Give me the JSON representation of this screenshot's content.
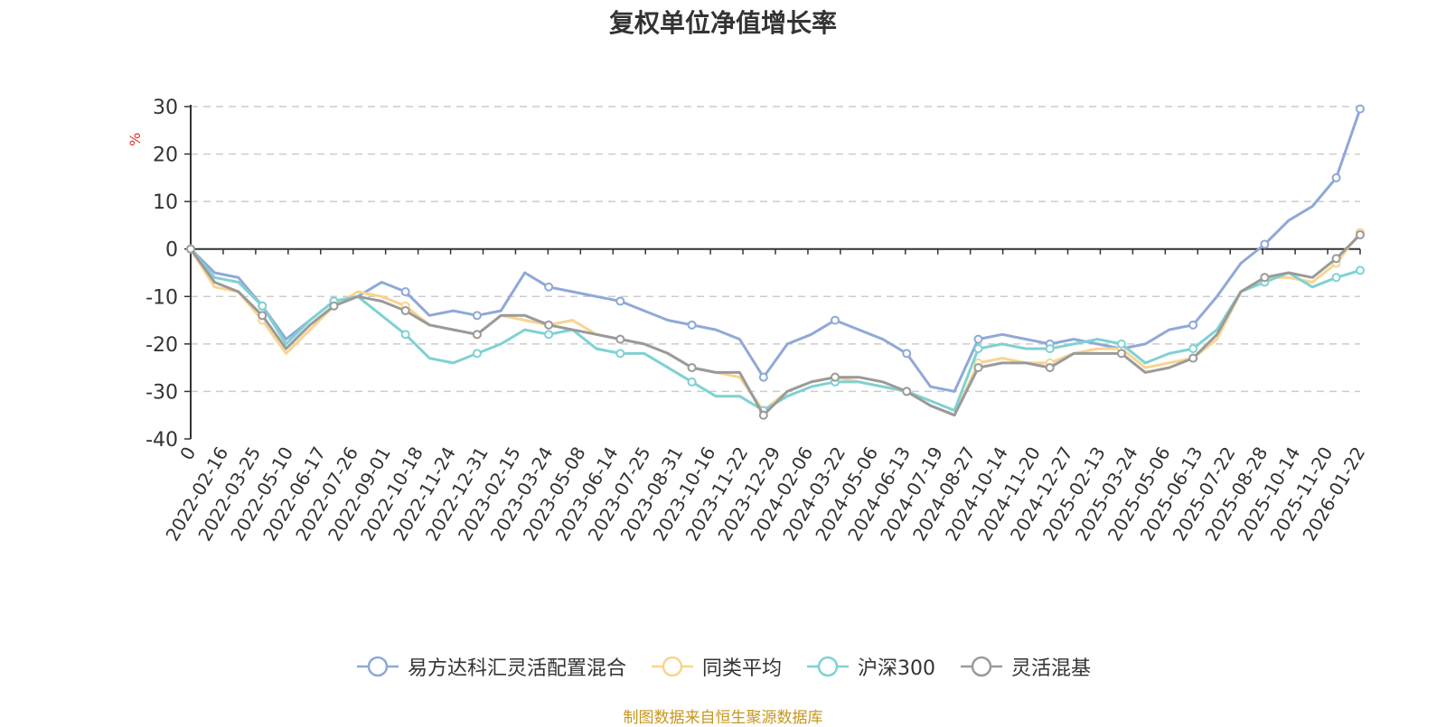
{
  "chart_data": {
    "type": "line",
    "title": "复权单位净值增长率",
    "ylabel": "%",
    "ylim": [
      -40,
      30
    ],
    "yticks": [
      -40,
      -30,
      -20,
      -10,
      0,
      10,
      20,
      30
    ],
    "grid": true,
    "legend_position": "bottom",
    "x_tick_labels": [
      "0",
      "2022-02-16",
      "2022-03-25",
      "2022-05-10",
      "2022-06-17",
      "2022-07-26",
      "2022-09-01",
      "2022-10-18",
      "2022-11-24",
      "2022-12-31",
      "2023-02-15",
      "2023-03-24",
      "2023-05-08",
      "2023-06-14",
      "2023-07-25",
      "2023-08-31",
      "2023-10-16",
      "2023-11-22",
      "2023-12-29",
      "2024-02-06",
      "2024-03-22",
      "2024-05-06",
      "2024-06-13",
      "2024-07-19",
      "2024-08-27",
      "2024-10-14",
      "2024-11-20",
      "2024-12-27",
      "2025-02-13",
      "2025-03-24",
      "2025-05-06",
      "2025-06-13",
      "2025-07-22",
      "2025-08-28",
      "2025-10-14",
      "2025-11-20",
      "2026-01-22"
    ],
    "series": [
      {
        "name": "易方达科汇灵活配置混合",
        "color": "#8fa8d8",
        "values": [
          0,
          -5,
          -6,
          -12,
          -19,
          -15,
          -11,
          -10,
          -7,
          -9,
          -14,
          -13,
          -14,
          -13,
          -5,
          -8,
          -9,
          -10,
          -11,
          -13,
          -15,
          -16,
          -17,
          -19,
          -27,
          -20,
          -18,
          -15,
          -17,
          -19,
          -22,
          -29,
          -30,
          -19,
          -18,
          -19,
          -20,
          -19,
          -20,
          -21,
          -20,
          -17,
          -16,
          -10,
          -3,
          1,
          6,
          9,
          15,
          29.5
        ]
      },
      {
        "name": "同类平均",
        "color": "#f9d48f",
        "values": [
          0,
          -8,
          -9,
          -15,
          -22,
          -17,
          -12,
          -9,
          -10,
          -12,
          -16,
          -17,
          -18,
          -14,
          -15,
          -16,
          -15,
          -18,
          -19,
          -20,
          -22,
          -25,
          -26,
          -27,
          -34,
          -30,
          -28,
          -27,
          -28,
          -29,
          -30,
          -33,
          -35,
          -24,
          -23,
          -24,
          -24,
          -22,
          -21,
          -21,
          -25,
          -24,
          -23,
          -19,
          -9,
          -6,
          -6,
          -7,
          -3,
          3.5
        ]
      },
      {
        "name": "沪深300",
        "color": "#7fd1d3",
        "values": [
          0,
          -6,
          -7,
          -12,
          -20,
          -15,
          -11,
          -10,
          -14,
          -18,
          -23,
          -24,
          -22,
          -20,
          -17,
          -18,
          -17,
          -21,
          -22,
          -22,
          -25,
          -28,
          -31,
          -31,
          -34,
          -31,
          -29,
          -28,
          -28,
          -29,
          -30,
          -32,
          -34,
          -21,
          -20,
          -21,
          -21,
          -20,
          -19,
          -20,
          -24,
          -22,
          -21,
          -17,
          -9,
          -7,
          -5,
          -8,
          -6,
          -4.5
        ]
      },
      {
        "name": "灵活混基",
        "color": "#9a9a9a",
        "values": [
          0,
          -7,
          -9,
          -14,
          -21,
          -16,
          -12,
          -10,
          -11,
          -13,
          -16,
          -17,
          -18,
          -14,
          -14,
          -16,
          -17,
          -18,
          -19,
          -20,
          -22,
          -25,
          -26,
          -26,
          -35,
          -30,
          -28,
          -27,
          -27,
          -28,
          -30,
          -33,
          -35,
          -25,
          -24,
          -24,
          -25,
          -22,
          -22,
          -22,
          -26,
          -25,
          -23,
          -18,
          -9,
          -6,
          -5,
          -6,
          -2,
          3.0
        ]
      }
    ]
  },
  "footer": "制图数据来自恒生聚源数据库"
}
